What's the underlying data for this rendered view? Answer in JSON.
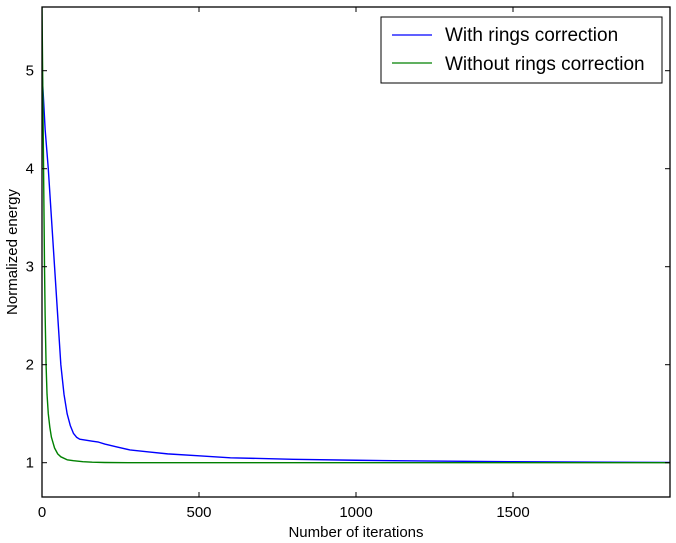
{
  "chart_data": {
    "type": "line",
    "xlabel": "Number of iterations",
    "ylabel": "Normalized energy",
    "xlim": [
      0,
      2000
    ],
    "ylim": [
      0.65,
      5.65
    ],
    "xticks": [
      0,
      500,
      1000,
      1500
    ],
    "yticks": [
      1,
      2,
      3,
      4,
      5
    ],
    "grid": false,
    "legend_position": "top-right",
    "series": [
      {
        "name": "With rings correction",
        "color": "#0000ff",
        "x": [
          0,
          5,
          10,
          20,
          30,
          40,
          50,
          60,
          70,
          80,
          90,
          100,
          110,
          120,
          140,
          160,
          180,
          200,
          240,
          280,
          340,
          400,
          500,
          600,
          800,
          1000,
          1200,
          1500,
          1800,
          2000
        ],
        "y": [
          5.0,
          4.7,
          4.4,
          4.0,
          3.5,
          3.0,
          2.5,
          2.0,
          1.7,
          1.5,
          1.38,
          1.3,
          1.26,
          1.24,
          1.23,
          1.22,
          1.21,
          1.19,
          1.16,
          1.13,
          1.11,
          1.09,
          1.07,
          1.05,
          1.035,
          1.025,
          1.018,
          1.01,
          1.005,
          1.003
        ]
      },
      {
        "name": "Without rings correction",
        "color": "#008000",
        "x": [
          0,
          2,
          5,
          8,
          10,
          13,
          16,
          20,
          25,
          30,
          40,
          50,
          60,
          80,
          100,
          130,
          160,
          200,
          300,
          500,
          1000,
          1500,
          2000
        ],
        "y": [
          5.65,
          5.0,
          4.0,
          3.0,
          2.5,
          2.0,
          1.7,
          1.5,
          1.36,
          1.26,
          1.15,
          1.09,
          1.06,
          1.03,
          1.02,
          1.01,
          1.005,
          1.002,
          1.0,
          1.0,
          1.0,
          1.0,
          1.0
        ]
      }
    ]
  }
}
